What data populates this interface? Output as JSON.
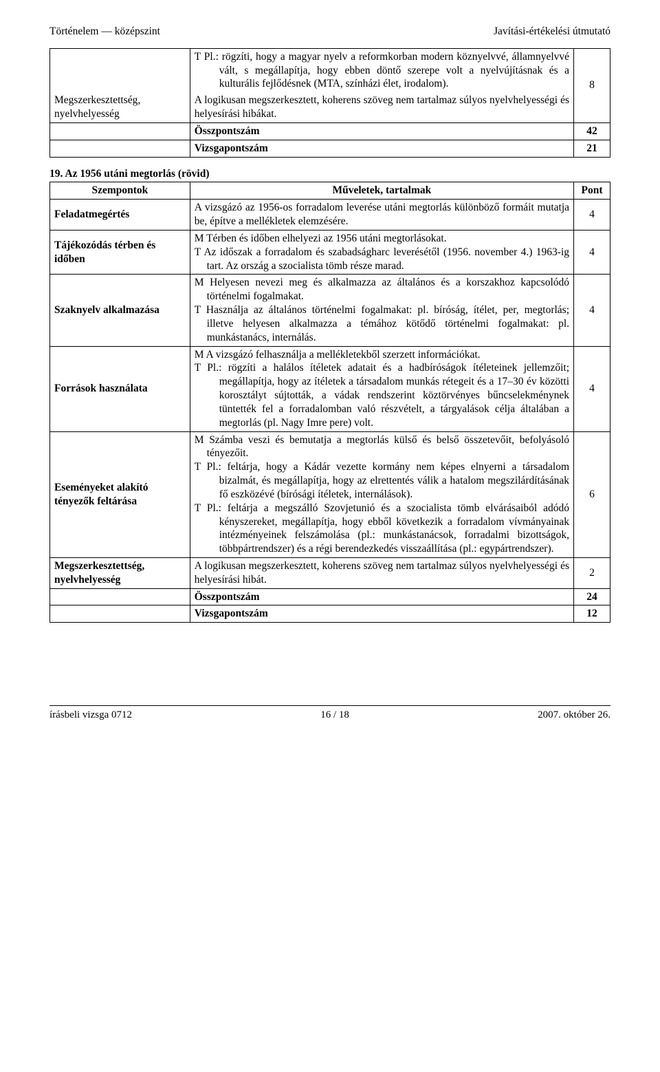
{
  "header": {
    "left": "Történelem — középszint",
    "right": "Javítási-értékelési útmutató"
  },
  "table1": {
    "row1": {
      "left_label": "Megszerkesztettség, nyelvhelyesség",
      "top_text": "T Pl.: rögzíti, hogy a magyar nyelv a reformkorban modern köznyelvvé, államnyelvvé vált, s megállapítja, hogy ebben döntő szerepe volt a nyelvújításnak és a kulturális fejlődésnek (MTA, színházi élet, irodalom).",
      "bottom_text": "A logikusan megszerkesztett, koherens szöveg nem tartalmaz súlyos nyelvhelyességi és helyesírási hibákat.",
      "pts": "8"
    },
    "sum_label": "Összpontszám",
    "sum_pts": "42",
    "exam_label": "Vizsgapontszám",
    "exam_pts": "21"
  },
  "section19": {
    "heading": "19. Az 1956 utáni megtorlás (rövid)",
    "head_l": "Szempontok",
    "head_m": "Műveletek, tartalmak",
    "head_r": "Pont",
    "rows": {
      "r1": {
        "l": "Feladatmegértés",
        "m": "A vizsgázó az 1956-os forradalom leverése utáni megtorlás különböző formáit mutatja be, építve a mellékletek elemzésére.",
        "p": "4"
      },
      "r2": {
        "l": "Tájékozódás térben és időben",
        "m_a": "M Térben és időben elhelyezi az 1956 utáni megtorlásokat.",
        "m_b": "T Az időszak a forradalom és szabadságharc leverésétől (1956. november 4.) 1963-ig tart. Az ország a szocialista tömb része marad.",
        "p": "4"
      },
      "r3": {
        "l": "Szaknyelv alkalmazása",
        "m_a": "M Helyesen nevezi meg és alkalmazza az általános és a korszakhoz kapcsolódó történelmi fogalmakat.",
        "m_b": "T Használja az általános történelmi fogalmakat: pl. bíróság, ítélet, per, megtorlás; illetve helyesen alkalmazza a témához kötődő történelmi fogalmakat: pl. munkástanács, internálás.",
        "p": "4"
      },
      "r4": {
        "l": "Források használata",
        "m_a": "M A vizsgázó felhasználja a mellékletekből szerzett információkat.",
        "m_b": "T Pl.: rögzíti a halálos ítéletek adatait és a hadbíróságok ítéleteinek jellemzőit; megállapítja, hogy az ítéletek a társadalom munkás rétegeit és a 17–30 év közötti korosztályt sújtották, a vádak rendszerint köztörvényes bűncselekménynek tüntették fel a forradalomban való részvételt, a tárgyalások célja általában a megtorlás (pl. Nagy Imre pere) volt.",
        "p": "4"
      },
      "r5": {
        "l": "Eseményeket alakító tényezők feltárása",
        "m_a": "M Számba veszi és bemutatja a megtorlás külső és belső összetevőit, befolyásoló tényezőit.",
        "m_b": "T Pl.: feltárja, hogy a Kádár vezette kormány nem képes elnyerni a társadalom bizalmát, és megállapítja, hogy az elrettentés válik a hatalom megszilárdításának fő eszközévé (bírósági ítéletek, internálások).",
        "m_c": "T Pl.: feltárja a megszálló Szovjetunió és a szocialista tömb elvárásaiból adódó kényszereket, megállapítja, hogy ebből következik a forradalom vívmányainak intézményeinek felszámolása (pl.: munkástanácsok, forradalmi bizottságok, többpártrendszer) és a régi berendezkedés visszaállítása (pl.: egypártrendszer).",
        "p": "6"
      },
      "r6": {
        "l": "Megszerkesztettség, nyelvhelyesség",
        "m": "A logikusan megszerkesztett, koherens szöveg nem tartalmaz súlyos nyelvhelyességi és helyesírási hibát.",
        "p": "2"
      }
    },
    "sum_label": "Összpontszám",
    "sum_pts": "24",
    "exam_label": "Vizsgapontszám",
    "exam_pts": "12"
  },
  "footer": {
    "left": "írásbeli vizsga 0712",
    "center": "16 / 18",
    "right": "2007. október 26."
  }
}
